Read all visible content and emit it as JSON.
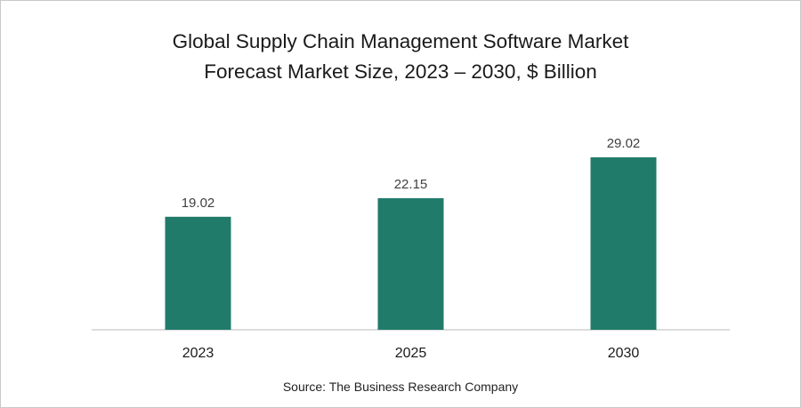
{
  "chart_data": {
    "type": "bar",
    "title_lines": [
      "Global Supply Chain Management Software Market",
      "Forecast Market Size, 2023 – 2030, $ Billion"
    ],
    "categories": [
      "2023",
      "2025",
      "2030"
    ],
    "values": [
      19.02,
      22.15,
      29.02
    ],
    "value_labels": [
      "19.02",
      "22.15",
      "29.02"
    ],
    "xlabel": "",
    "ylabel": "",
    "ylim": [
      0,
      29.02
    ],
    "grid": false,
    "legend": "none",
    "bar_color": "#217b6b",
    "axis_color": "#d0d0d0",
    "label_color": "#404040"
  },
  "source": "Source: The Business Research Company"
}
